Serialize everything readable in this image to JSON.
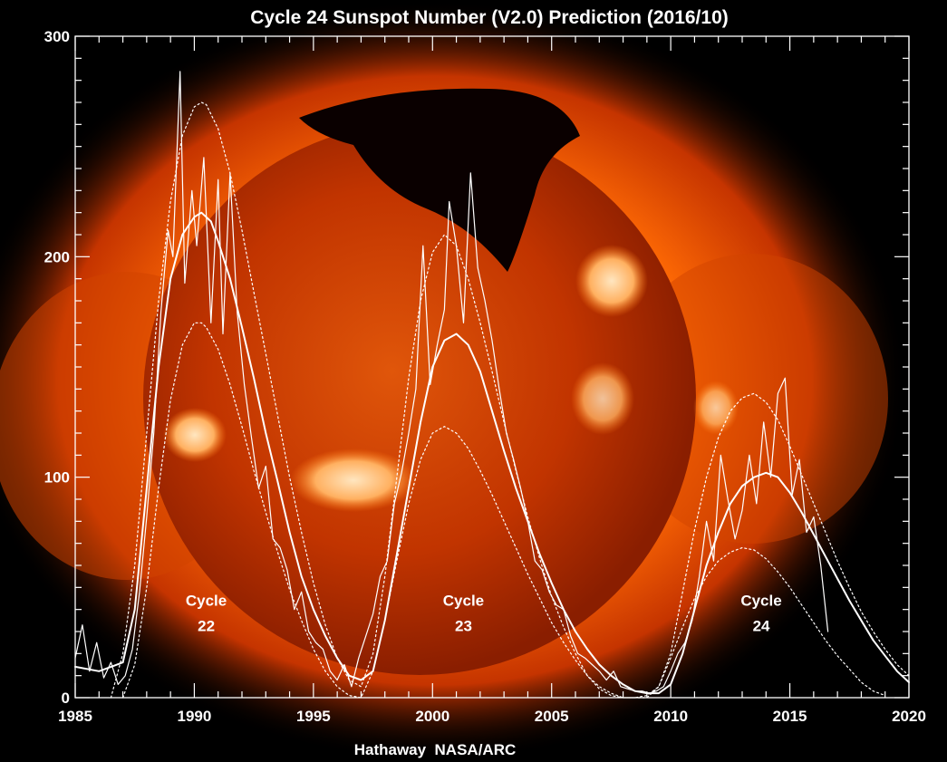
{
  "colors": {
    "background": "#000000",
    "corona_outer": "#d24000",
    "corona_mid": "#ff7a10",
    "disk": "#c93a00",
    "coronal_hole": "#0a0000",
    "frame": "#ffffff",
    "data_line": "#ffffff"
  },
  "chart_data": {
    "type": "line",
    "title": "Cycle 24 Sunspot Number (V2.0) Prediction (2016/10)",
    "credit": "Hathaway  NASA/ARC",
    "xlabel": "",
    "ylabel": "",
    "xlim": [
      1985,
      2020
    ],
    "ylim": [
      0,
      300
    ],
    "x_ticks": [
      1985,
      1990,
      1995,
      2000,
      2005,
      2010,
      2015,
      2020
    ],
    "y_ticks": [
      0,
      100,
      200,
      300
    ],
    "grid": false,
    "legend": "none",
    "annotations": [
      {
        "line1": "Cycle",
        "line2": "22",
        "x": 1990.5,
        "y": 36
      },
      {
        "line1": "Cycle",
        "line2": "23",
        "x": 2001.3,
        "y": 36
      },
      {
        "line1": "Cycle",
        "line2": "24",
        "x": 2013.8,
        "y": 36
      }
    ],
    "series": [
      {
        "kind": "monthly",
        "x": [
          1985.0,
          1985.3,
          1985.6,
          1985.9,
          1986.2,
          1986.5,
          1986.8,
          1987.1,
          1987.4,
          1987.7,
          1988.0,
          1988.3,
          1988.6,
          1988.9,
          1989.1,
          1989.4,
          1989.6,
          1989.9,
          1990.1,
          1990.4,
          1990.7,
          1991.0,
          1991.2,
          1991.5,
          1991.8,
          1992.1,
          1992.4,
          1992.7,
          1993.0,
          1993.3,
          1993.6,
          1993.9,
          1994.2,
          1994.5,
          1994.8,
          1995.1,
          1995.4,
          1995.7,
          1996.0,
          1996.3,
          1996.6,
          1996.9,
          1997.2,
          1997.5,
          1997.8,
          1998.1,
          1998.4,
          1998.7,
          1999.0,
          1999.3,
          1999.6,
          1999.9,
          2000.2,
          2000.5,
          2000.7,
          2001.0,
          2001.3,
          2001.6,
          2001.9,
          2002.2,
          2002.5,
          2002.8,
          2003.1,
          2003.4,
          2003.7,
          2004.0,
          2004.3,
          2004.6,
          2004.9,
          2005.2,
          2005.5,
          2005.8,
          2006.1,
          2006.4,
          2006.7,
          2007.0,
          2007.3,
          2007.6,
          2007.9,
          2008.2,
          2008.5,
          2008.8,
          2009.1,
          2009.4,
          2009.7,
          2010.0,
          2010.3,
          2010.6,
          2010.9,
          2011.2,
          2011.5,
          2011.8,
          2012.1,
          2012.4,
          2012.7,
          2013.0,
          2013.3,
          2013.6,
          2013.9,
          2014.2,
          2014.5,
          2014.8,
          2015.1,
          2015.4,
          2015.7,
          2016.0,
          2016.3,
          2016.6
        ],
        "values": [
          18,
          33,
          12,
          25,
          9,
          16,
          6,
          10,
          22,
          48,
          82,
          120,
          175,
          212,
          200,
          284,
          188,
          230,
          205,
          245,
          170,
          235,
          165,
          238,
          175,
          142,
          118,
          95,
          105,
          72,
          68,
          58,
          40,
          48,
          30,
          25,
          22,
          12,
          8,
          15,
          5,
          18,
          28,
          38,
          55,
          62,
          88,
          102,
          120,
          140,
          205,
          142,
          160,
          176,
          225,
          205,
          170,
          238,
          195,
          180,
          162,
          140,
          120,
          108,
          95,
          80,
          62,
          58,
          48,
          42,
          40,
          28,
          20,
          18,
          15,
          12,
          8,
          12,
          5,
          4,
          3,
          3,
          2,
          3,
          5,
          12,
          20,
          25,
          35,
          55,
          80,
          62,
          110,
          90,
          72,
          85,
          110,
          88,
          125,
          100,
          138,
          145,
          92,
          108,
          75,
          82,
          60,
          30
        ],
        "stroke_width": 1.2,
        "dash": "none"
      },
      {
        "kind": "smoothed",
        "x": [
          1985.0,
          1986.0,
          1987.0,
          1987.5,
          1988.0,
          1988.5,
          1989.0,
          1989.5,
          1990.0,
          1990.3,
          1990.7,
          1991.0,
          1991.5,
          1992.0,
          1992.5,
          1993.0,
          1993.5,
          1994.0,
          1994.5,
          1995.0,
          1995.5,
          1996.0,
          1996.5,
          1997.0,
          1997.5,
          1998.0,
          1998.5,
          1999.0,
          1999.5,
          2000.0,
          2000.5,
          2001.0,
          2001.5,
          2002.0,
          2002.5,
          2003.0,
          2003.5,
          2004.0,
          2004.5,
          2005.0,
          2005.5,
          2006.0,
          2006.5,
          2007.0,
          2007.5,
          2008.0,
          2008.5,
          2009.0,
          2009.5,
          2010.0,
          2010.5,
          2011.0,
          2011.5,
          2012.0,
          2012.5,
          2013.0,
          2013.5,
          2014.0,
          2014.5,
          2015.0,
          2015.5,
          2016.0,
          2016.5,
          2017.0,
          2017.5,
          2018.0,
          2018.5,
          2019.0,
          2019.5,
          2020.0
        ],
        "values": [
          14,
          12,
          16,
          40,
          95,
          150,
          190,
          210,
          218,
          220,
          216,
          207,
          190,
          168,
          145,
          120,
          98,
          75,
          55,
          40,
          28,
          18,
          10,
          8,
          12,
          35,
          65,
          95,
          125,
          150,
          162,
          165,
          160,
          148,
          130,
          112,
          95,
          80,
          65,
          52,
          40,
          30,
          22,
          15,
          10,
          6,
          3,
          2,
          2,
          6,
          20,
          40,
          60,
          75,
          88,
          96,
          100,
          102,
          100,
          93,
          84,
          74,
          64,
          54,
          44,
          35,
          26,
          19,
          12,
          7
        ],
        "stroke_width": 2,
        "dash": "none"
      },
      {
        "kind": "prediction_upper",
        "x": [
          1986.5,
          1987.0,
          1987.5,
          1988.0,
          1988.5,
          1989.0,
          1989.5,
          1990.0,
          1990.3,
          1990.5,
          1991.0,
          1991.5,
          1992.0,
          1992.5,
          1993.0,
          1993.5,
          1994.0,
          1994.5,
          1995.0,
          1995.5,
          1996.0,
          1996.5,
          1997.0,
          1997.5,
          1998.0,
          1998.5,
          1999.0,
          1999.5,
          2000.0,
          2000.5,
          2001.0,
          2001.5,
          2002.0,
          2002.5,
          2003.0,
          2003.5,
          2004.0,
          2004.5,
          2005.0,
          2005.5,
          2006.0,
          2006.5,
          2007.0,
          2007.5,
          2008.0,
          2008.5,
          2009.0,
          2009.5,
          2010.0,
          2010.5,
          2011.0,
          2011.5,
          2012.0,
          2012.5,
          2013.0,
          2013.5,
          2014.0,
          2014.5,
          2015.0,
          2015.5,
          2016.0,
          2016.5,
          2017.0,
          2017.5,
          2018.0,
          2018.5,
          2019.0,
          2019.5,
          2020.0
        ],
        "values": [
          0,
          20,
          60,
          120,
          180,
          225,
          255,
          268,
          270,
          269,
          258,
          238,
          212,
          184,
          156,
          128,
          100,
          75,
          52,
          33,
          18,
          8,
          5,
          20,
          55,
          100,
          145,
          180,
          202,
          210,
          205,
          190,
          170,
          148,
          125,
          103,
          82,
          63,
          46,
          32,
          20,
          10,
          4,
          1,
          0,
          0,
          1,
          5,
          20,
          48,
          76,
          100,
          118,
          130,
          136,
          138,
          134,
          126,
          114,
          101,
          88,
          75,
          62,
          50,
          39,
          30,
          22,
          15,
          10
        ],
        "stroke_width": 1.2,
        "dash": "2,3"
      },
      {
        "kind": "prediction_lower",
        "x": [
          1987.0,
          1987.5,
          1988.0,
          1988.5,
          1989.0,
          1989.5,
          1990.0,
          1990.3,
          1990.5,
          1991.0,
          1991.5,
          1992.0,
          1992.5,
          1993.0,
          1993.5,
          1994.0,
          1994.5,
          1995.0,
          1995.5,
          1996.0,
          1996.5,
          1997.0,
          1997.5,
          1998.0,
          1998.5,
          1999.0,
          1999.5,
          2000.0,
          2000.5,
          2001.0,
          2001.5,
          2002.0,
          2002.5,
          2003.0,
          2003.5,
          2004.0,
          2004.5,
          2005.0,
          2005.5,
          2006.0,
          2006.5,
          2007.0,
          2007.5,
          2008.0,
          2008.5,
          2009.0,
          2009.5,
          2010.0,
          2010.5,
          2011.0,
          2011.5,
          2012.0,
          2012.5,
          2013.0,
          2013.5,
          2014.0,
          2014.5,
          2015.0,
          2015.5,
          2016.0,
          2016.5,
          2017.0,
          2017.5,
          2018.0,
          2018.5,
          2019.0
        ],
        "values": [
          0,
          15,
          50,
          95,
          135,
          160,
          170,
          170,
          168,
          158,
          142,
          123,
          103,
          84,
          66,
          49,
          35,
          22,
          12,
          5,
          1,
          0,
          12,
          35,
          62,
          88,
          108,
          120,
          123,
          120,
          113,
          103,
          92,
          80,
          68,
          56,
          45,
          34,
          25,
          17,
          10,
          5,
          2,
          0,
          0,
          0,
          5,
          18,
          32,
          45,
          55,
          62,
          66,
          68,
          67,
          63,
          57,
          50,
          42,
          34,
          26,
          19,
          13,
          7,
          3,
          1
        ],
        "stroke_width": 1.2,
        "dash": "2,3"
      }
    ]
  }
}
